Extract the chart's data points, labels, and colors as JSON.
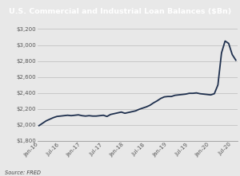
{
  "title": "U.S. Commercial and Industrial Loan Balances ($Bn)",
  "title_bg_color": "#1e2f4d",
  "title_text_color": "#ffffff",
  "line_color": "#1e2f4d",
  "source_text": "Source: FRED",
  "background_color": "#e8e8e8",
  "plot_bg_color": "#e8e8e8",
  "ylim": [
    1800,
    3200
  ],
  "yticks": [
    1800,
    2000,
    2200,
    2400,
    2600,
    2800,
    3000,
    3200
  ],
  "x_labels": [
    "Jan-16",
    "Jul-16",
    "Jan-17",
    "Jul-17",
    "Jan-18",
    "Jul-18",
    "Jan-19",
    "Jul-19",
    "Jan-20",
    "Jul-20"
  ],
  "x_values": [
    0,
    6,
    12,
    18,
    24,
    30,
    36,
    42,
    48,
    54
  ],
  "data_x": [
    0,
    1,
    2,
    3,
    4,
    5,
    6,
    7,
    8,
    9,
    10,
    11,
    12,
    13,
    14,
    15,
    16,
    17,
    18,
    19,
    20,
    21,
    22,
    23,
    24,
    25,
    26,
    27,
    28,
    29,
    30,
    31,
    32,
    33,
    34,
    35,
    36,
    37,
    38,
    39,
    40,
    41,
    42,
    43,
    44,
    45,
    46,
    47,
    48,
    49,
    50,
    51,
    52,
    53,
    54,
    55
  ],
  "data_y": [
    1990,
    2020,
    2050,
    2070,
    2090,
    2105,
    2110,
    2115,
    2120,
    2115,
    2120,
    2125,
    2115,
    2110,
    2115,
    2110,
    2110,
    2115,
    2120,
    2105,
    2130,
    2140,
    2150,
    2160,
    2145,
    2155,
    2165,
    2175,
    2195,
    2210,
    2225,
    2245,
    2275,
    2300,
    2330,
    2350,
    2355,
    2355,
    2370,
    2375,
    2380,
    2385,
    2395,
    2395,
    2400,
    2390,
    2385,
    2380,
    2375,
    2390,
    2500,
    2900,
    3050,
    3020,
    2880,
    2810
  ]
}
